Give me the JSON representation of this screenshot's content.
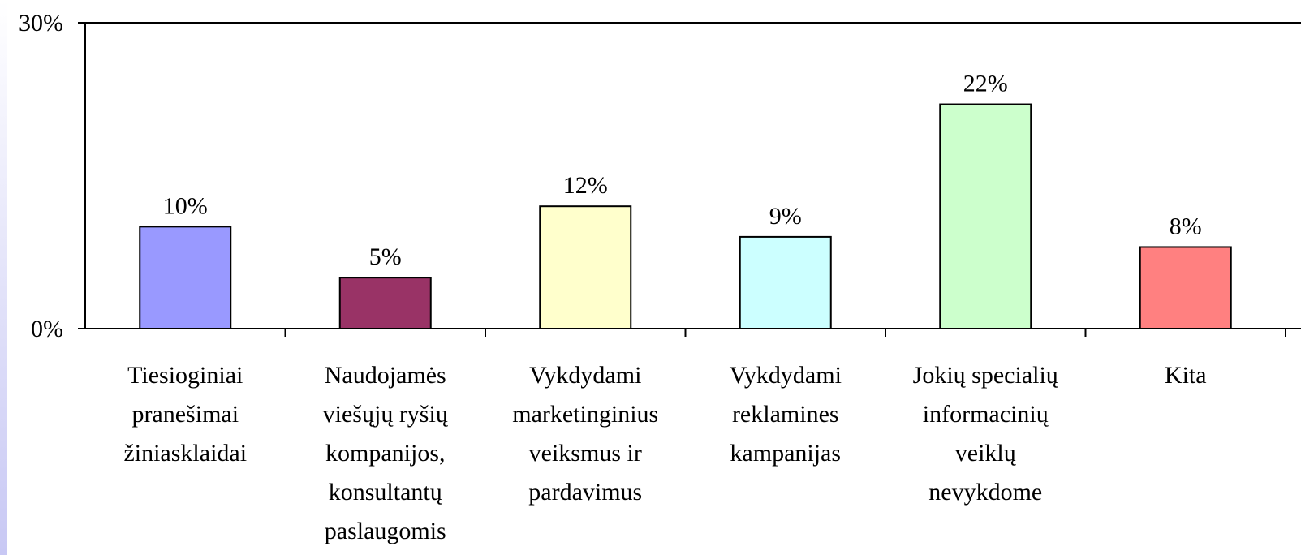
{
  "chart_data": {
    "type": "bar",
    "categories": [
      [
        "Tiesioginiai",
        "pranešimai",
        "žiniasklaidai"
      ],
      [
        "Naudojamės",
        "viešųjų ryšių",
        "kompanijos,",
        "konsultantų",
        "paslaugomis"
      ],
      [
        "Vykdydami",
        "marketinginius",
        "veiksmus ir",
        "pardavimus"
      ],
      [
        "Vykdydami",
        "reklamines",
        "kampanijas"
      ],
      [
        "Jokių specialių",
        "informacinių",
        "veiklų",
        "nevykdome"
      ],
      [
        "Kita"
      ]
    ],
    "values": [
      10,
      5,
      12,
      9,
      22,
      8
    ],
    "value_labels": [
      "10%",
      "5%",
      "12%",
      "9%",
      "22%",
      "8%"
    ],
    "colors": [
      "#9999ff",
      "#993366",
      "#ffffcc",
      "#ccffff",
      "#ccffcc",
      "#ff8080"
    ],
    "ylim": [
      0,
      30
    ],
    "yticks": [
      {
        "value": 0,
        "label": "0%"
      },
      {
        "value": 30,
        "label": "30%"
      }
    ],
    "grid": false
  }
}
